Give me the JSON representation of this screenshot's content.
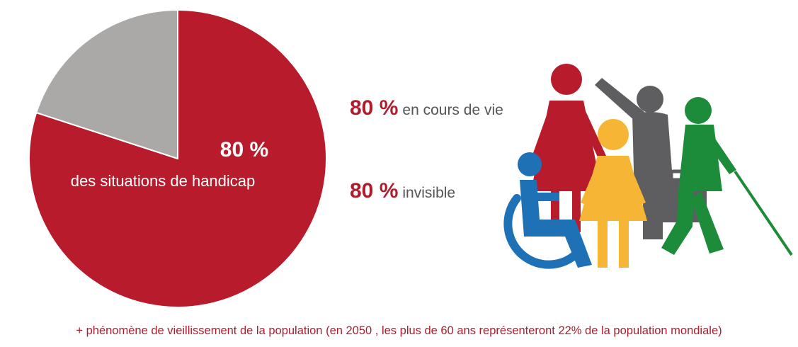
{
  "chart_data": {
    "type": "pie",
    "slices": [
      {
        "label": "des situations de handicap",
        "value": 80,
        "color": "#b81c2c"
      },
      {
        "label": "",
        "value": 20,
        "color": "#aba8a8"
      }
    ],
    "data_label": {
      "value": "80 %",
      "text": "des situations de handicap"
    }
  },
  "stats": [
    {
      "value": "80 %",
      "label": "en cours de vie"
    },
    {
      "value": "80 %",
      "label": "invisible"
    }
  ],
  "illustration": {
    "icon": "diverse-disability-people-icon",
    "colors": {
      "red": "#b81c2c",
      "grey": "#5e5e60",
      "yellow": "#f6b535",
      "green": "#1d8c3a",
      "blue": "#1f71b6"
    }
  },
  "footnote": "+ phénomène de vieillissement de la population (en 2050 , les plus de 60 ans représenteront 22% de la population mondiale)"
}
